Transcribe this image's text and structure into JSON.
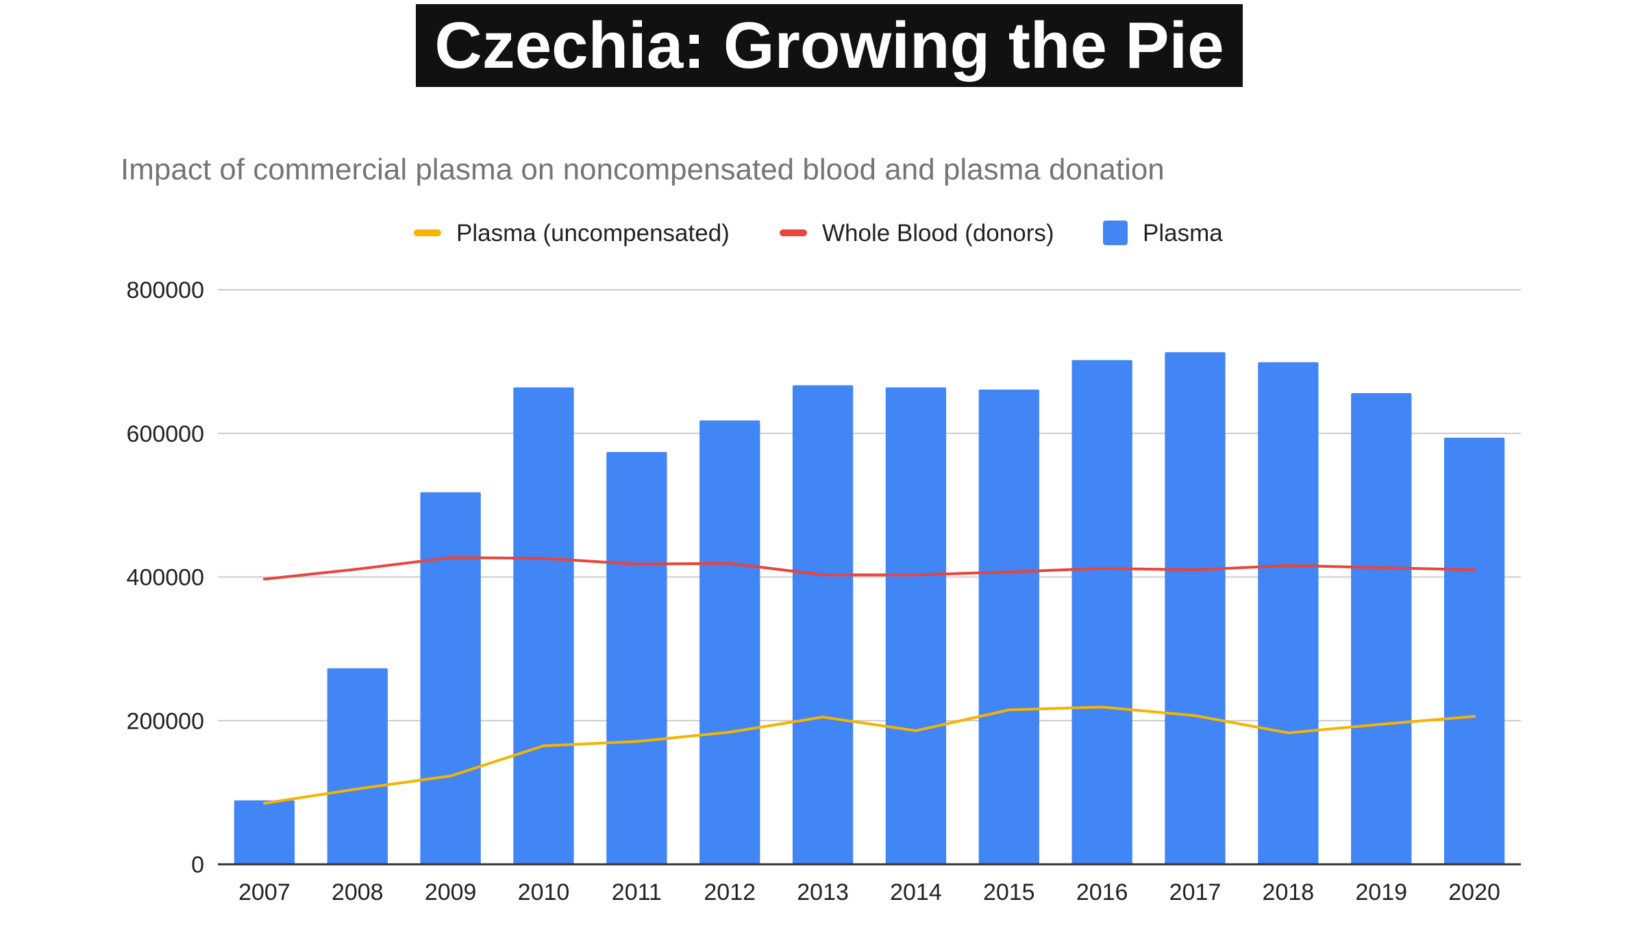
{
  "slide": {
    "title": "Czechia: Growing the Pie"
  },
  "chart_data": {
    "type": "bar",
    "title": "Impact of commercial plasma on noncompensated blood and plasma donation",
    "xlabel": "",
    "ylabel": "",
    "categories": [
      "2007",
      "2008",
      "2009",
      "2010",
      "2011",
      "2012",
      "2013",
      "2014",
      "2015",
      "2016",
      "2017",
      "2018",
      "2019",
      "2020"
    ],
    "ylim": [
      0,
      800000
    ],
    "yticks": [
      0,
      200000,
      400000,
      600000,
      800000
    ],
    "ytick_labels": [
      "0",
      "200000",
      "400000",
      "600000",
      "800000"
    ],
    "grid": true,
    "legend_position": "top-center",
    "series": [
      {
        "name": "Plasma (uncompensated)",
        "kind": "line",
        "color": "#f4b400",
        "values": [
          85000,
          105000,
          123000,
          165000,
          171000,
          184000,
          205000,
          186000,
          215000,
          219000,
          207000,
          183000,
          195000,
          206000
        ]
      },
      {
        "name": "Whole Blood (donors)",
        "kind": "line",
        "color": "#e8453c",
        "values": [
          397000,
          411000,
          427000,
          426000,
          418000,
          419000,
          403000,
          403000,
          407000,
          412000,
          410000,
          416000,
          413000,
          410000
        ]
      },
      {
        "name": "Plasma",
        "kind": "bar",
        "color": "#4285f4",
        "values": [
          89000,
          273000,
          518000,
          664000,
          574000,
          618000,
          667000,
          664000,
          661000,
          702000,
          713000,
          699000,
          656000,
          594000
        ]
      }
    ],
    "legend_order": [
      0,
      1,
      2
    ],
    "axis_color": "#333333",
    "grid_color": "#cccccc"
  }
}
